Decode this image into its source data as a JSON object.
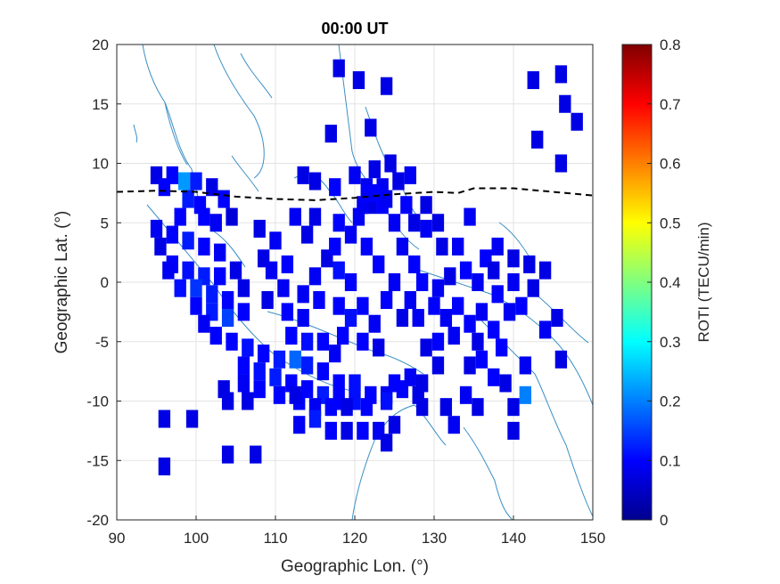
{
  "chart_data": {
    "type": "heatmap",
    "title": "00:00 UT",
    "xlabel": "Geographic Lon. (°)",
    "ylabel": "Geographic Lat. (°)",
    "xlim": [
      90,
      150
    ],
    "ylim": [
      -20,
      20
    ],
    "xticks": [
      "90",
      "100",
      "110",
      "120",
      "130",
      "140",
      "150"
    ],
    "yticks": [
      "20",
      "15",
      "10",
      "5",
      "0",
      "-5",
      "-10",
      "-15",
      "-20"
    ],
    "grid": true,
    "colorbar": {
      "label": "ROTI (TECU/min)",
      "range": [
        0,
        0.8
      ],
      "ticks": [
        "0.8",
        "0.7",
        "0.6",
        "0.5",
        "0.4",
        "0.3",
        "0.2",
        "0.1",
        "0"
      ],
      "colormap": "jet"
    },
    "magnetic_equator": {
      "style": "dashed",
      "color": "#000000",
      "points": [
        [
          90,
          7.6
        ],
        [
          95,
          7.7
        ],
        [
          100,
          7.6
        ],
        [
          105,
          7.2
        ],
        [
          110,
          7.0
        ],
        [
          115,
          6.9
        ],
        [
          120,
          7.1
        ],
        [
          125,
          7.4
        ],
        [
          130,
          7.6
        ],
        [
          133,
          7.5
        ],
        [
          135,
          7.9
        ],
        [
          140,
          7.9
        ],
        [
          145,
          7.6
        ],
        [
          150,
          7.3
        ]
      ]
    },
    "coastline_color": "#2b8cbe",
    "cell_size_deg": [
      1.5,
      1.5
    ],
    "cells": [
      [
        95,
        9,
        0.08
      ],
      [
        97,
        9,
        0.1
      ],
      [
        98.5,
        8.5,
        0.22
      ],
      [
        100,
        8.5,
        0.12
      ],
      [
        102,
        8,
        0.08
      ],
      [
        96,
        8,
        0.1
      ],
      [
        103.5,
        7,
        0.1
      ],
      [
        99,
        7,
        0.12
      ],
      [
        100.5,
        6.5,
        0.1
      ],
      [
        98,
        5.5,
        0.1
      ],
      [
        101,
        5.5,
        0.1
      ],
      [
        102.5,
        5,
        0.09
      ],
      [
        104.5,
        5.5,
        0.07
      ],
      [
        95,
        4.5,
        0.09
      ],
      [
        97,
        4,
        0.1
      ],
      [
        99,
        3.5,
        0.12
      ],
      [
        101,
        3,
        0.1
      ],
      [
        103,
        2.5,
        0.09
      ],
      [
        95.5,
        3,
        0.08
      ],
      [
        97,
        1.5,
        0.1
      ],
      [
        99,
        1,
        0.11
      ],
      [
        101,
        0.5,
        0.12
      ],
      [
        103,
        0.5,
        0.1
      ],
      [
        105,
        1,
        0.08
      ],
      [
        96.5,
        1,
        0.09
      ],
      [
        98,
        -0.5,
        0.11
      ],
      [
        100,
        -0.5,
        0.14
      ],
      [
        102,
        -1,
        0.12
      ],
      [
        104,
        -1.5,
        0.1
      ],
      [
        106,
        -0.5,
        0.08
      ],
      [
        100,
        -2,
        0.1
      ],
      [
        102,
        -2.5,
        0.12
      ],
      [
        104,
        -3,
        0.15
      ],
      [
        106,
        -2.5,
        0.1
      ],
      [
        101,
        -3.5,
        0.09
      ],
      [
        102.5,
        -4.5,
        0.1
      ],
      [
        104.5,
        -5,
        0.1
      ],
      [
        106.5,
        -5.5,
        0.11
      ],
      [
        108.5,
        -6,
        0.1
      ],
      [
        110.5,
        -6.5,
        0.12
      ],
      [
        112.5,
        -6.5,
        0.18
      ],
      [
        114,
        -7,
        0.12
      ],
      [
        116,
        -7.5,
        0.1
      ],
      [
        118,
        -8.5,
        0.1
      ],
      [
        120,
        -8.5,
        0.11
      ],
      [
        106,
        -7,
        0.1
      ],
      [
        108,
        -7.5,
        0.11
      ],
      [
        110,
        -8,
        0.12
      ],
      [
        112,
        -8.5,
        0.1
      ],
      [
        114,
        -9,
        0.1
      ],
      [
        116,
        -9.5,
        0.12
      ],
      [
        118,
        -10,
        0.1
      ],
      [
        120,
        -10,
        0.11
      ],
      [
        122,
        -9.5,
        0.1
      ],
      [
        124,
        -9.5,
        0.09
      ],
      [
        126,
        -9,
        0.1
      ],
      [
        128,
        -9.5,
        0.08
      ],
      [
        113,
        -10,
        0.1
      ],
      [
        115,
        -10.5,
        0.09
      ],
      [
        117,
        -10.5,
        0.1
      ],
      [
        119,
        -10.5,
        0.08
      ],
      [
        121.5,
        -10.5,
        0.1
      ],
      [
        124,
        -10,
        0.11
      ],
      [
        106,
        -8.5,
        0.09
      ],
      [
        108,
        -9,
        0.1
      ],
      [
        110.5,
        -9.5,
        0.1
      ],
      [
        112.5,
        -9.5,
        0.08
      ],
      [
        127,
        -8,
        0.09
      ],
      [
        125,
        -8.5,
        0.1
      ],
      [
        103.5,
        -9,
        0.08
      ],
      [
        106.5,
        -10,
        0.08
      ],
      [
        115,
        -11.5,
        0.12
      ],
      [
        113,
        -12,
        0.09
      ],
      [
        117,
        -12.5,
        0.1
      ],
      [
        119,
        -12.5,
        0.08
      ],
      [
        121,
        -12.5,
        0.1
      ],
      [
        123,
        -12.5,
        0.09
      ],
      [
        125,
        -12,
        0.08
      ],
      [
        124,
        -13.5,
        0.08
      ],
      [
        96,
        -11.5,
        0.08
      ],
      [
        99.5,
        -11.5,
        0.08
      ],
      [
        104,
        -10,
        0.08
      ],
      [
        106.5,
        -10,
        0.08
      ],
      [
        104,
        -14.5,
        0.08
      ],
      [
        107.5,
        -14.5,
        0.08
      ],
      [
        96,
        -15.5,
        0.08
      ],
      [
        128.5,
        -10.5,
        0.08
      ],
      [
        108,
        4.5,
        0.08
      ],
      [
        110,
        3.5,
        0.09
      ],
      [
        108.5,
        2,
        0.08
      ],
      [
        109.5,
        1,
        0.09
      ],
      [
        111.5,
        1.5,
        0.1
      ],
      [
        111,
        -0.5,
        0.09
      ],
      [
        109,
        -1.5,
        0.08
      ],
      [
        111.5,
        -2.5,
        0.1
      ],
      [
        113.5,
        -3,
        0.09
      ],
      [
        112,
        -4.5,
        0.1
      ],
      [
        114,
        -5,
        0.11
      ],
      [
        116,
        -5,
        0.1
      ],
      [
        113.5,
        -1,
        0.09
      ],
      [
        115.5,
        -1.5,
        0.1
      ],
      [
        115,
        0.5,
        0.09
      ],
      [
        116.5,
        2,
        0.08
      ],
      [
        114,
        4,
        0.08
      ],
      [
        112.5,
        5.5,
        0.09
      ],
      [
        115,
        5.5,
        0.08
      ],
      [
        118,
        5,
        0.1
      ],
      [
        119.5,
        4,
        0.09
      ],
      [
        117.5,
        3,
        0.1
      ],
      [
        118,
        1,
        0.11
      ],
      [
        119.5,
        0,
        0.1
      ],
      [
        118,
        -2,
        0.1
      ],
      [
        119.5,
        -3,
        0.11
      ],
      [
        118.5,
        -4.5,
        0.1
      ],
      [
        117.5,
        -6,
        0.09
      ],
      [
        121,
        -2,
        0.1
      ],
      [
        122.5,
        -3.5,
        0.09
      ],
      [
        121,
        -5,
        0.1
      ],
      [
        123,
        -5.5,
        0.08
      ],
      [
        124,
        -1.5,
        0.1
      ],
      [
        125,
        0,
        0.09
      ],
      [
        123,
        1.5,
        0.1
      ],
      [
        121.5,
        3,
        0.1
      ],
      [
        120.5,
        5.5,
        0.09
      ],
      [
        122,
        6.5,
        0.08
      ],
      [
        123.5,
        6.5,
        0.1
      ],
      [
        125,
        5,
        0.09
      ],
      [
        126.5,
        6.5,
        0.1
      ],
      [
        127.5,
        5,
        0.08
      ],
      [
        126,
        3,
        0.09
      ],
      [
        127.5,
        1.5,
        0.1
      ],
      [
        128.5,
        0,
        0.1
      ],
      [
        127,
        -1.5,
        0.09
      ],
      [
        126,
        -3,
        0.08
      ],
      [
        128,
        -3,
        0.09
      ],
      [
        130,
        -2,
        0.1
      ],
      [
        131.5,
        -3,
        0.09
      ],
      [
        133,
        -2,
        0.1
      ],
      [
        130.5,
        -0.5,
        0.09
      ],
      [
        132,
        0.5,
        0.08
      ],
      [
        134,
        1,
        0.1
      ],
      [
        135.5,
        0,
        0.09
      ],
      [
        136.5,
        2,
        0.1
      ],
      [
        137.5,
        1,
        0.08
      ],
      [
        138,
        -1,
        0.1
      ],
      [
        136,
        -2.5,
        0.09
      ],
      [
        134.5,
        -3.5,
        0.1
      ],
      [
        132.5,
        -4.5,
        0.09
      ],
      [
        130.5,
        -5,
        0.1
      ],
      [
        129,
        -5.5,
        0.08
      ],
      [
        135.5,
        -5,
        0.08
      ],
      [
        137.5,
        -4,
        0.1
      ],
      [
        139.5,
        -2.5,
        0.09
      ],
      [
        141,
        -2,
        0.1
      ],
      [
        142.5,
        -0.5,
        0.08
      ],
      [
        140,
        0,
        0.09
      ],
      [
        138,
        3,
        0.09
      ],
      [
        133,
        3,
        0.09
      ],
      [
        131,
        3,
        0.08
      ],
      [
        129,
        4.5,
        0.09
      ],
      [
        130.5,
        5,
        0.08
      ],
      [
        129,
        6.5,
        0.08
      ],
      [
        134.5,
        5.5,
        0.09
      ],
      [
        140,
        2,
        0.08
      ],
      [
        142,
        1.5,
        0.08
      ],
      [
        144,
        1,
        0.08
      ],
      [
        145.5,
        -3,
        0.08
      ],
      [
        144,
        -4,
        0.09
      ],
      [
        138.5,
        -5.5,
        0.1
      ],
      [
        136,
        -6.5,
        0.1
      ],
      [
        134.5,
        -7,
        0.08
      ],
      [
        137.5,
        -8,
        0.1
      ],
      [
        141.5,
        -7,
        0.09
      ],
      [
        146,
        -6.5,
        0.08
      ],
      [
        139,
        -8.5,
        0.08
      ],
      [
        141.5,
        -9.5,
        0.2
      ],
      [
        140,
        -10.5,
        0.08
      ],
      [
        140,
        -12.5,
        0.08
      ],
      [
        134,
        -9.5,
        0.09
      ],
      [
        135.5,
        -10.5,
        0.08
      ],
      [
        131.5,
        -10.5,
        0.08
      ],
      [
        132.5,
        -12,
        0.09
      ],
      [
        130.5,
        -7,
        0.08
      ],
      [
        128.5,
        -8.5,
        0.08
      ],
      [
        121,
        6.5,
        0.09
      ],
      [
        121.5,
        8,
        0.09
      ],
      [
        115,
        8.5,
        0.08
      ],
      [
        117.5,
        8,
        0.1
      ],
      [
        120,
        9,
        0.09
      ],
      [
        123.5,
        8,
        0.09
      ],
      [
        125.5,
        8.5,
        0.08
      ],
      [
        127,
        9,
        0.09
      ],
      [
        122.5,
        9.5,
        0.08
      ],
      [
        121.5,
        7.5,
        0.1
      ],
      [
        124,
        7,
        0.09
      ],
      [
        122.5,
        7.5,
        0.1
      ],
      [
        124.5,
        10,
        0.08
      ],
      [
        117,
        12.5,
        0.08
      ],
      [
        122,
        13,
        0.08
      ],
      [
        118,
        18,
        0.08
      ],
      [
        120.5,
        17,
        0.08
      ],
      [
        124,
        16.5,
        0.08
      ],
      [
        113.5,
        9,
        0.08
      ],
      [
        142.5,
        17,
        0.08
      ],
      [
        146,
        17.5,
        0.08
      ],
      [
        146.5,
        15,
        0.08
      ],
      [
        148,
        13.5,
        0.08
      ],
      [
        143,
        12,
        0.08
      ],
      [
        146,
        10,
        0.08
      ]
    ]
  }
}
